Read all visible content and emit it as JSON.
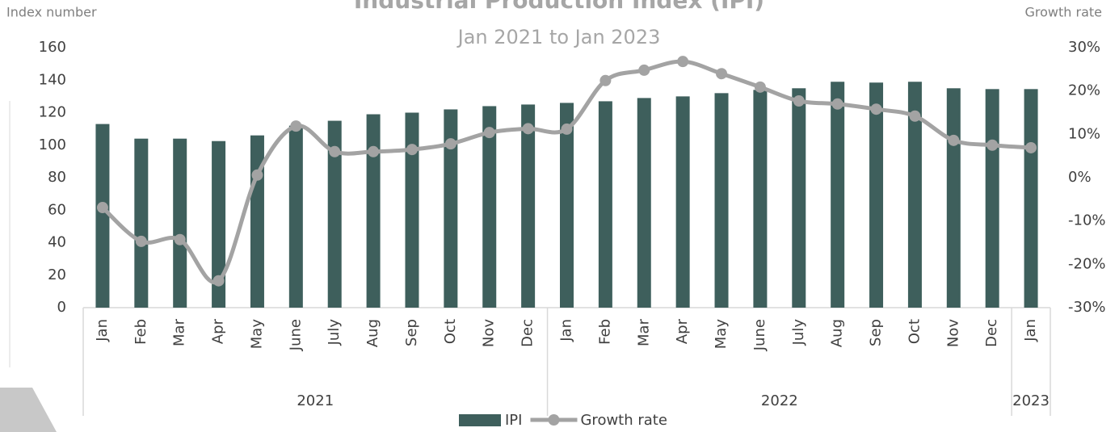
{
  "chart_data": {
    "type": "combo",
    "title": "Industrial Production Index (IPI)",
    "subtitle": "Jan 2021 to Jan 2023",
    "y_label": "Index number",
    "y2_label": "Growth rate",
    "categories": [
      "Jan",
      "Feb",
      "Mar",
      "Apr",
      "May",
      "June",
      "July",
      "Aug",
      "Sep",
      "Oct",
      "Nov",
      "Dec",
      "Jan",
      "Feb",
      "Mar",
      "Apr",
      "May",
      "June",
      "July",
      "Aug",
      "Sep",
      "Oct",
      "Nov",
      "Dec",
      "Jan"
    ],
    "x_groups": [
      {
        "label": "2021",
        "span": 12
      },
      {
        "label": "2022",
        "span": 12
      },
      {
        "label": "2023",
        "span": 1
      }
    ],
    "series": [
      {
        "name": "IPI",
        "type": "bar",
        "color": "#3e5f5c",
        "values": [
          113,
          104,
          104,
          102.5,
          106,
          112,
          115,
          119,
          120,
          122,
          124,
          125,
          126,
          127,
          129,
          130,
          132,
          134,
          135,
          139,
          138.5,
          139,
          135,
          134.5,
          134.5
        ]
      },
      {
        "name": "Growth rate",
        "type": "line",
        "axis": "y2",
        "color": "#a3a3a3",
        "values": [
          -6.9,
          -14.7,
          -14.3,
          -23.8,
          0.6,
          11.9,
          6.0,
          6.0,
          6.5,
          7.8,
          10.4,
          11.3,
          11.2,
          22.4,
          24.8,
          26.8,
          24.0,
          20.9,
          17.7,
          17.0,
          15.8,
          14.2,
          8.6,
          7.5,
          6.9
        ]
      }
    ],
    "ylim": [
      0,
      160
    ],
    "yticks": [
      0,
      20,
      40,
      60,
      80,
      100,
      120,
      140,
      160
    ],
    "y2lim": [
      -30,
      30
    ],
    "y2ticks": [
      {
        "value": -30,
        "label": "-30%"
      },
      {
        "value": -20,
        "label": "-20%"
      },
      {
        "value": -10,
        "label": "-10%"
      },
      {
        "value": 0,
        "label": "0%"
      },
      {
        "value": 10,
        "label": "10%"
      },
      {
        "value": 20,
        "label": "20%"
      },
      {
        "value": 30,
        "label": "30%"
      }
    ],
    "grid": false,
    "legend": "bottom"
  }
}
